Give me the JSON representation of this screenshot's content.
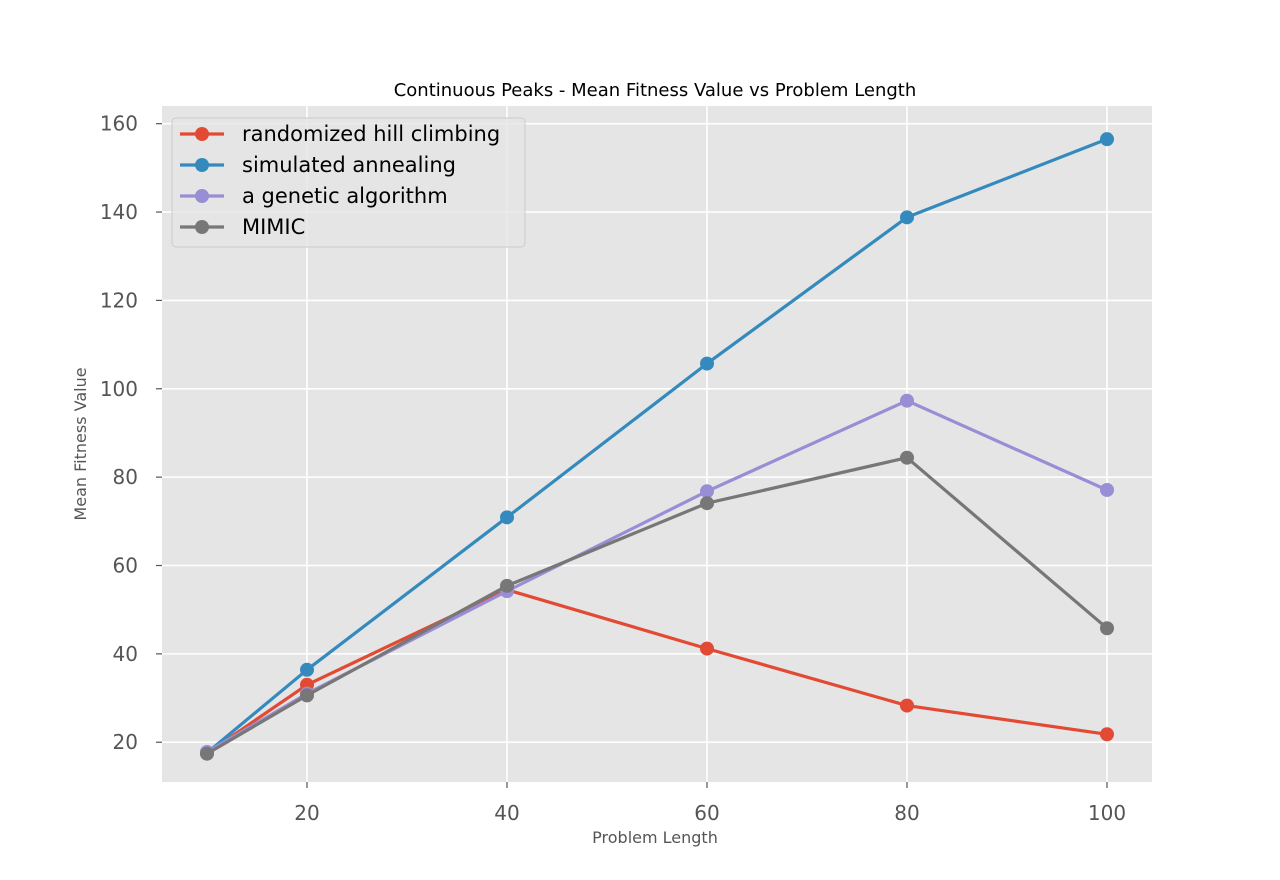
{
  "chart_data": {
    "type": "line",
    "title": "Continuous Peaks - Mean Fitness Value vs Problem Length",
    "xlabel": "Problem Length",
    "ylabel": "Mean Fitness Value",
    "xlim": [
      5.5,
      104.5
    ],
    "ylim": [
      11,
      164
    ],
    "xticks": [
      20,
      40,
      60,
      80,
      100
    ],
    "yticks": [
      20,
      40,
      60,
      80,
      100,
      120,
      140,
      160
    ],
    "grid": true,
    "legend_position": "top-left",
    "x": [
      10,
      20,
      40,
      60,
      80,
      100
    ],
    "series": [
      {
        "name": "randomized hill climbing",
        "color": "#E24A33",
        "values": [
          17.5,
          33,
          54.5,
          41.2,
          28.3,
          21.8
        ]
      },
      {
        "name": "simulated annealing",
        "color": "#348ABD",
        "values": [
          17.6,
          36.4,
          70.9,
          105.7,
          138.8,
          156.5
        ]
      },
      {
        "name": "a genetic algorithm",
        "color": "#988ED5",
        "values": [
          17.8,
          31,
          54.2,
          76.8,
          97.3,
          77.1
        ]
      },
      {
        "name": "MIMIC",
        "color": "#777777",
        "values": [
          17.4,
          30.6,
          55.4,
          74.1,
          84.4,
          45.8
        ]
      }
    ]
  }
}
